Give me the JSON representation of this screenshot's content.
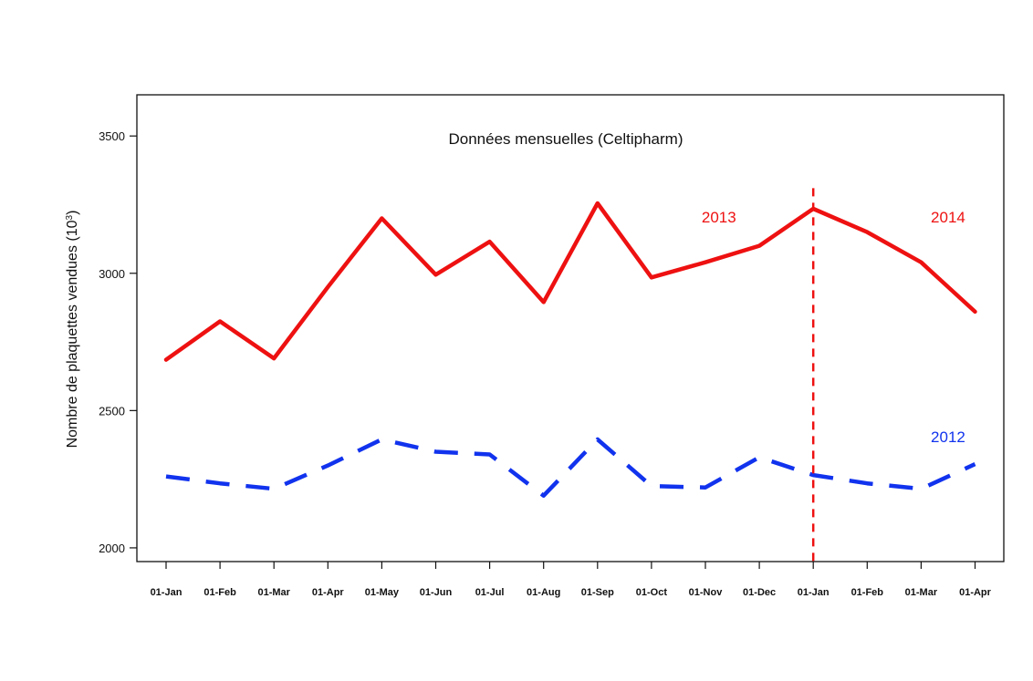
{
  "chart_data": {
    "type": "line",
    "title": "Données mensuelles (Celtipharm)",
    "ylabel_main": "Nombre de plaquettes vendues (10",
    "ylabel_exp": "3",
    "ylabel_close": ")",
    "xlabel": "",
    "categories": [
      "01-Jan",
      "01-Feb",
      "01-Mar",
      "01-Apr",
      "01-May",
      "01-Jun",
      "01-Jul",
      "01-Aug",
      "01-Sep",
      "01-Oct",
      "01-Nov",
      "01-Dec",
      "01-Jan",
      "01-Feb",
      "01-Mar",
      "01-Apr"
    ],
    "ylim": [
      1950,
      3650
    ],
    "yticks": [
      2000,
      2500,
      3000,
      3500
    ],
    "grid": false,
    "series": [
      {
        "name": "2013-2014",
        "color": "#ee1111",
        "style": "solid",
        "values": [
          2685,
          2825,
          2690,
          2950,
          3200,
          2995,
          3115,
          2895,
          3255,
          2985,
          3040,
          3100,
          3235,
          3150,
          3040,
          2860
        ]
      },
      {
        "name": "2012",
        "color": "#1133ee",
        "style": "dashed",
        "values": [
          2260,
          2235,
          2215,
          2300,
          2395,
          2350,
          2340,
          2190,
          2395,
          2225,
          2220,
          2330,
          2265,
          2235,
          2215,
          2305
        ]
      }
    ],
    "annotations": [
      {
        "text": "2013",
        "color": "#ee1111",
        "x_index": 10.25,
        "y": 3205
      },
      {
        "text": "2014",
        "color": "#ee1111",
        "x_index": 14.5,
        "y": 3205
      },
      {
        "text": "2012",
        "color": "#1133ee",
        "x_index": 14.5,
        "y": 2405
      }
    ],
    "vline": {
      "x_index": 12,
      "color": "#ee1111",
      "style": "dashed",
      "y_top": 3300
    }
  }
}
